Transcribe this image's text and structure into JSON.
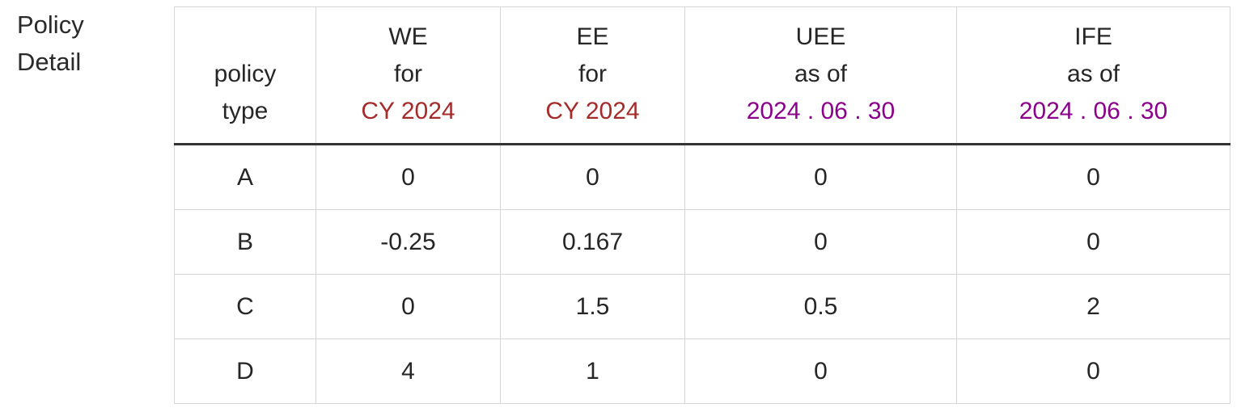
{
  "side_label": [
    "Policy",
    "Detail"
  ],
  "colors": {
    "cy_accent": "#a52a2a",
    "date_accent": "#8b008b",
    "header_rule": "#333333",
    "grid": "#d6d6d6"
  },
  "table": {
    "headers": [
      {
        "lines": [
          "policy",
          "type"
        ],
        "highlight": ""
      },
      {
        "lines": [
          "WE",
          "for"
        ],
        "highlight": "CY 2024",
        "highlight_color": "red"
      },
      {
        "lines": [
          "EE",
          "for"
        ],
        "highlight": "CY 2024",
        "highlight_color": "red"
      },
      {
        "lines": [
          "UEE",
          "as of"
        ],
        "highlight": "2024 . 06 . 30",
        "highlight_color": "purple"
      },
      {
        "lines": [
          "IFE",
          "as of"
        ],
        "highlight": "2024 . 06 . 30",
        "highlight_color": "purple"
      }
    ],
    "rows": [
      [
        "A",
        "0",
        "0",
        "0",
        "0"
      ],
      [
        "B",
        "-0.25",
        "0.167",
        "0",
        "0"
      ],
      [
        "C",
        "0",
        "1.5",
        "0.5",
        "2"
      ],
      [
        "D",
        "4",
        "1",
        "0",
        "0"
      ]
    ]
  }
}
